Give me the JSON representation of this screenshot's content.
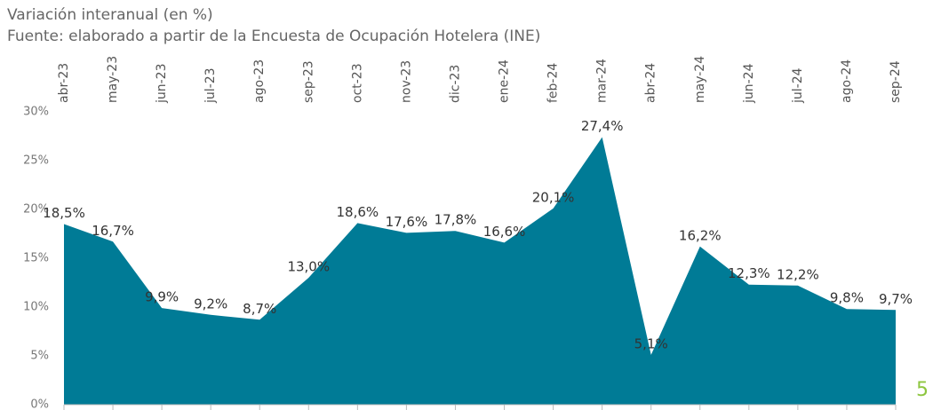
{
  "chart_data": {
    "type": "area",
    "title": "Variación interanual (en %)",
    "subtitle": "Fuente: elaborado a partir de la Encuesta de Ocupación Hotelera (INE)",
    "categories": [
      "abr-23",
      "may-23",
      "jun-23",
      "jul-23",
      "ago-23",
      "sep-23",
      "oct-23",
      "nov-23",
      "dic-23",
      "ene-24",
      "feb-24",
      "mar-24",
      "abr-24",
      "may-24",
      "jun-24",
      "jul-24",
      "ago-24",
      "sep-24"
    ],
    "values": [
      18.5,
      16.7,
      9.9,
      9.2,
      8.7,
      13.0,
      18.6,
      17.6,
      17.8,
      16.6,
      20.1,
      27.4,
      5.1,
      16.2,
      12.3,
      12.2,
      9.8,
      9.7
    ],
    "value_labels": [
      "18,5%",
      "16,7%",
      "9,9%",
      "9,2%",
      "8,7%",
      "13,0%",
      "18,6%",
      "17,6%",
      "17,8%",
      "16,6%",
      "20,1%",
      "27,4%",
      "5,1%",
      "16,2%",
      "12,3%",
      "12,2%",
      "9,8%",
      "9,7%"
    ],
    "color": "#007b96",
    "ylim": [
      0,
      30
    ],
    "yticks": [
      {
        "value": 0,
        "label": "0%"
      },
      {
        "value": 5,
        "label": "5%"
      },
      {
        "value": 10,
        "label": "10%"
      },
      {
        "value": 15,
        "label": "15%"
      },
      {
        "value": 20,
        "label": "20%"
      },
      {
        "value": 25,
        "label": "25%"
      },
      {
        "value": 30,
        "label": "30%"
      }
    ],
    "grid": false
  },
  "page_number": "5"
}
